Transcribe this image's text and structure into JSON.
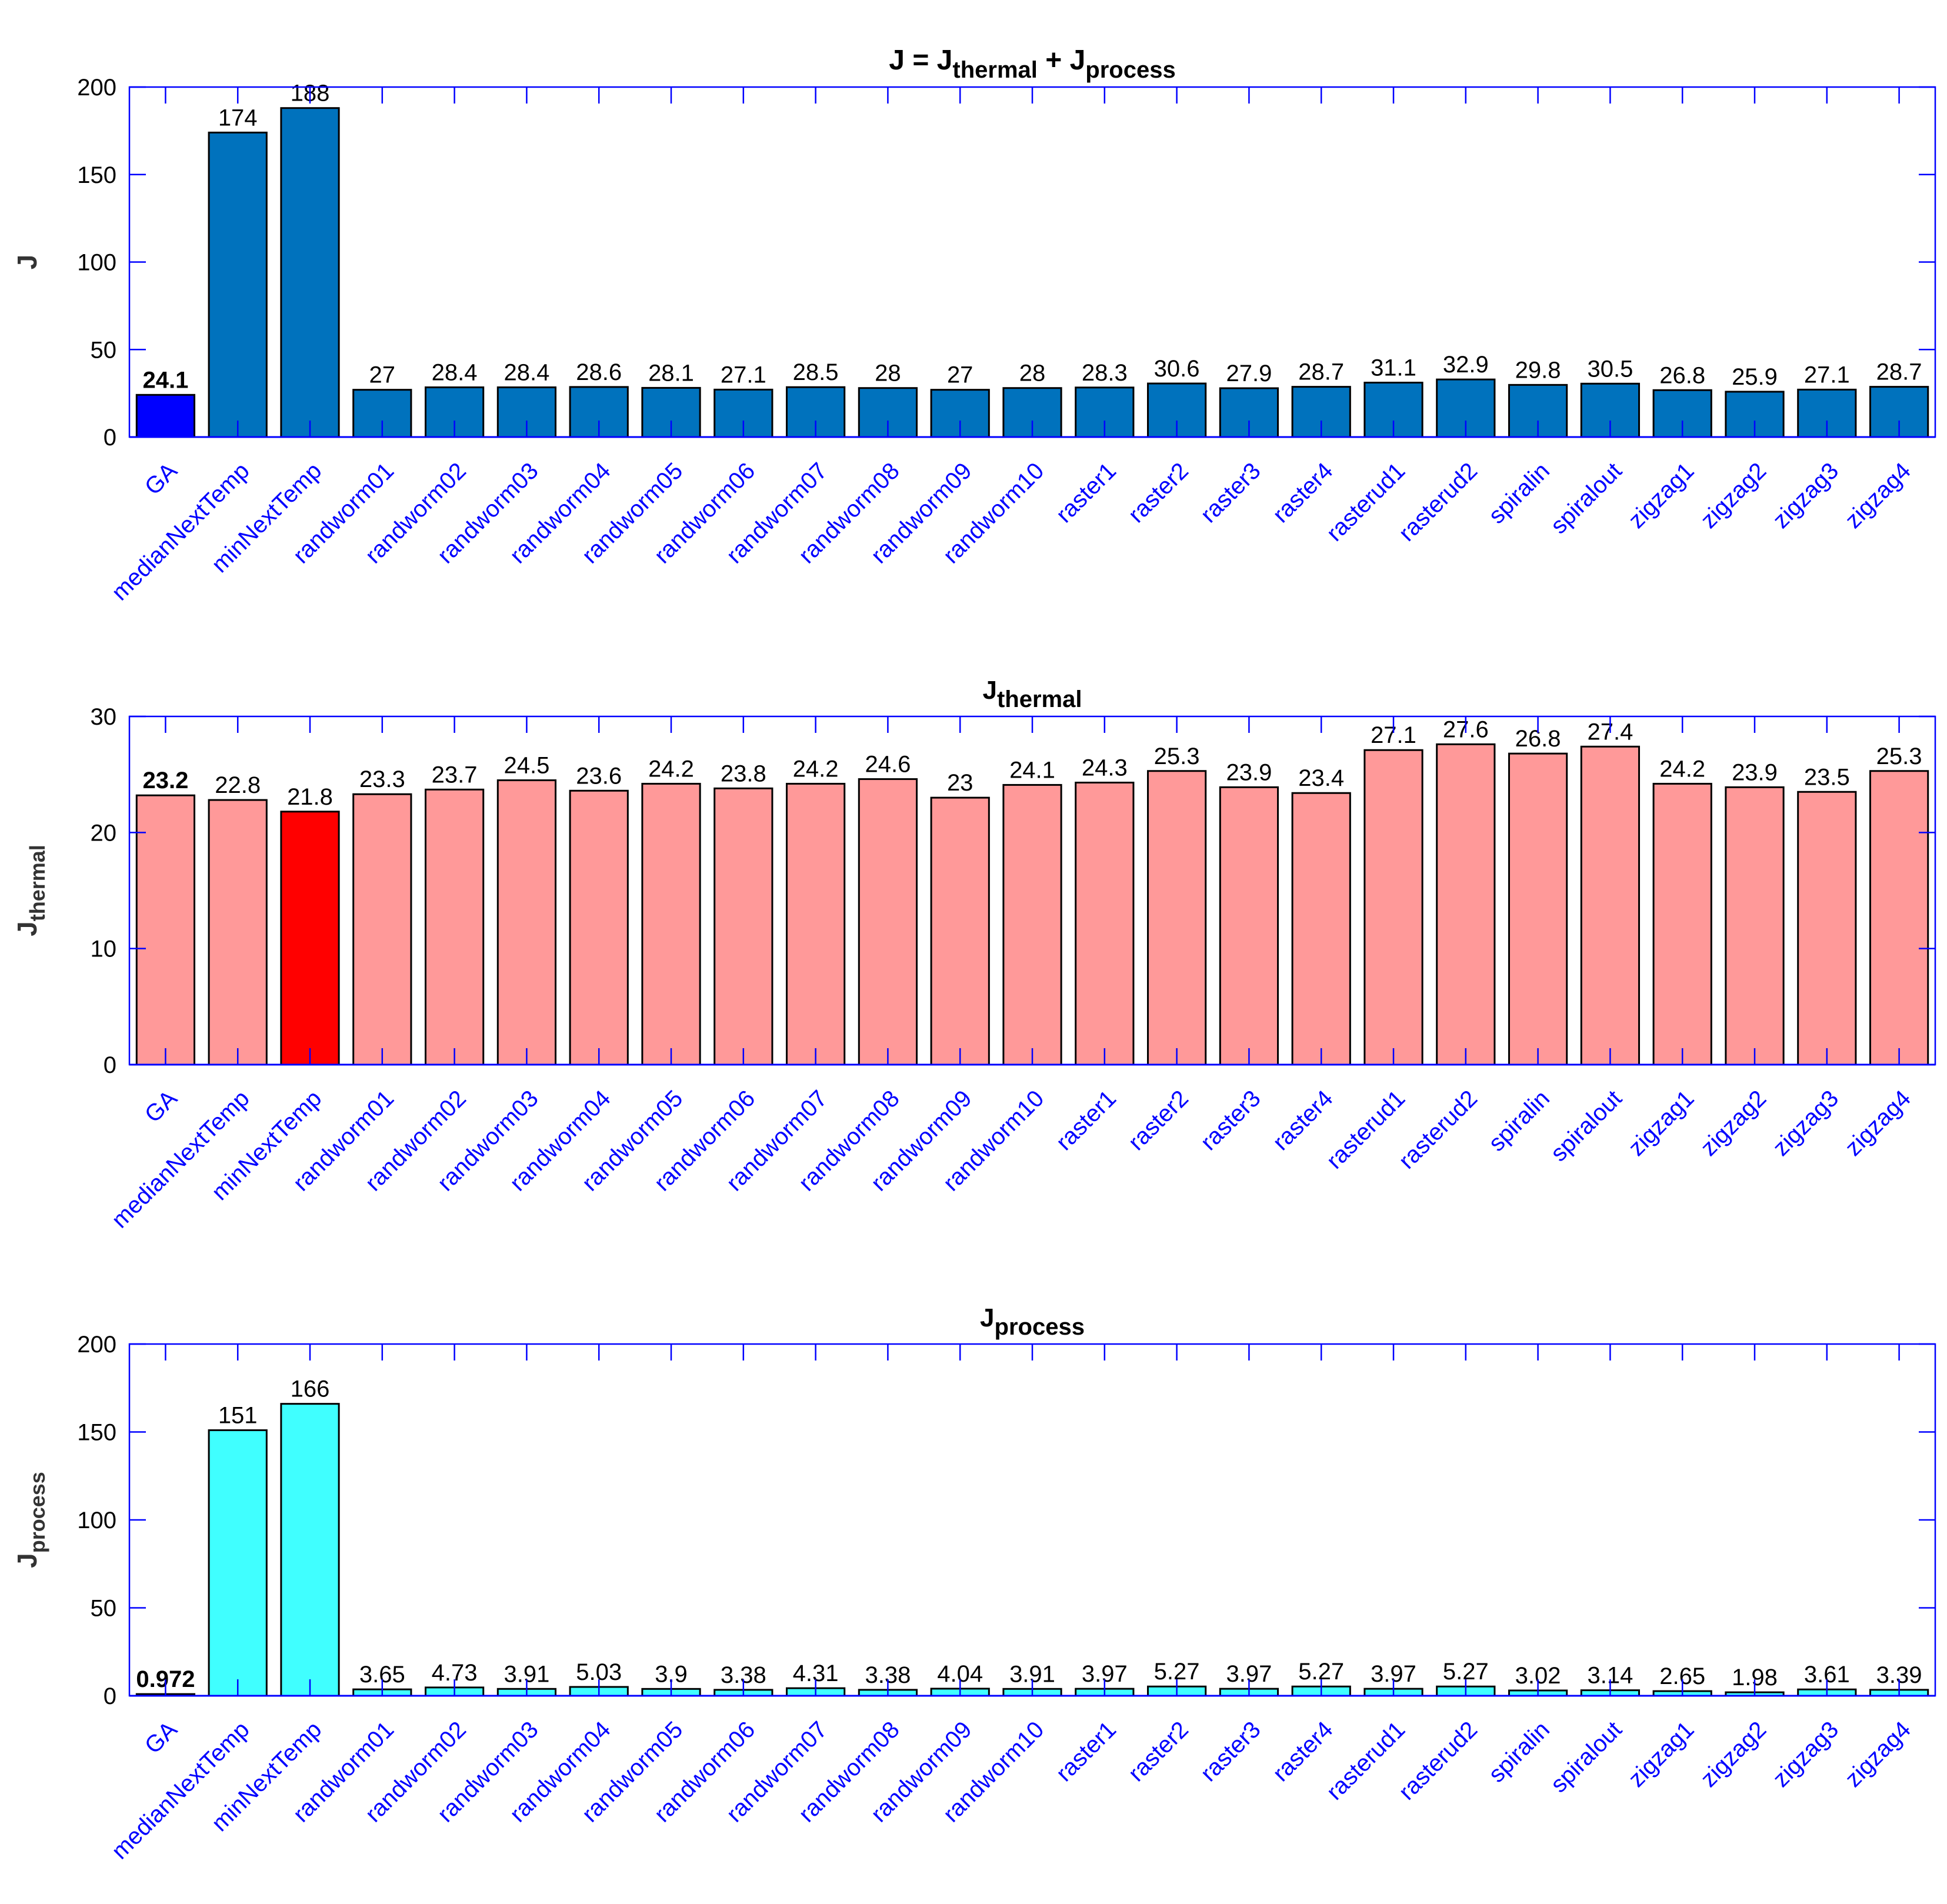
{
  "chart_data": [
    {
      "type": "bar",
      "title": "J = J",
      "title_sub1": "thermal",
      "title_mid": " + J",
      "title_sub2": "process",
      "ylabel": "J",
      "ylabel_sub": "",
      "ylim": [
        0,
        200
      ],
      "yticks": [
        "0",
        "50",
        "100",
        "150",
        "200"
      ],
      "categories": [
        "GA",
        "medianNextTemp",
        "minNextTemp",
        "randworm01",
        "randworm02",
        "randworm03",
        "randworm04",
        "randworm05",
        "randworm06",
        "randworm07",
        "randworm08",
        "randworm09",
        "randworm10",
        "raster1",
        "raster2",
        "raster3",
        "raster4",
        "rasterud1",
        "rasterud2",
        "spiralin",
        "spiralout",
        "zigzag1",
        "zigzag2",
        "zigzag3",
        "zigzag4"
      ],
      "values": [
        24.1,
        174,
        188,
        27,
        28.4,
        28.4,
        28.6,
        28.1,
        27.1,
        28.5,
        28,
        27,
        28,
        28.3,
        30.6,
        27.9,
        28.7,
        31.1,
        32.9,
        29.8,
        30.5,
        26.8,
        25.9,
        27.1,
        28.7
      ],
      "data_labels": [
        "24.1",
        "174",
        "188",
        "27",
        "28.4",
        "28.4",
        "28.6",
        "28.1",
        "27.1",
        "28.5",
        "28",
        "27",
        "28",
        "28.3",
        "30.6",
        "27.9",
        "28.7",
        "31.1",
        "32.9",
        "29.8",
        "30.5",
        "26.8",
        "25.9",
        "27.1",
        "28.7"
      ],
      "highlight_index": 0,
      "bar_color": "#0072BD",
      "highlight_color": "#0000FF",
      "grid": false
    },
    {
      "type": "bar",
      "title": "J",
      "title_sub1": "thermal",
      "title_mid": "",
      "title_sub2": "",
      "ylabel": "J",
      "ylabel_sub": "thermal",
      "ylim": [
        0,
        30
      ],
      "yticks": [
        "0",
        "10",
        "20",
        "30"
      ],
      "categories": [
        "GA",
        "medianNextTemp",
        "minNextTemp",
        "randworm01",
        "randworm02",
        "randworm03",
        "randworm04",
        "randworm05",
        "randworm06",
        "randworm07",
        "randworm08",
        "randworm09",
        "randworm10",
        "raster1",
        "raster2",
        "raster3",
        "raster4",
        "rasterud1",
        "rasterud2",
        "spiralin",
        "spiralout",
        "zigzag1",
        "zigzag2",
        "zigzag3",
        "zigzag4"
      ],
      "values": [
        23.2,
        22.8,
        21.8,
        23.3,
        23.7,
        24.5,
        23.6,
        24.2,
        23.8,
        24.2,
        24.6,
        23,
        24.1,
        24.3,
        25.3,
        23.9,
        23.4,
        27.1,
        27.6,
        26.8,
        27.4,
        24.2,
        23.9,
        23.5,
        25.3
      ],
      "data_labels": [
        "23.2",
        "22.8",
        "21.8",
        "23.3",
        "23.7",
        "24.5",
        "23.6",
        "24.2",
        "23.8",
        "24.2",
        "24.6",
        "23",
        "24.1",
        "24.3",
        "25.3",
        "23.9",
        "23.4",
        "27.1",
        "27.6",
        "26.8",
        "27.4",
        "24.2",
        "23.9",
        "23.5",
        "25.3"
      ],
      "bold_label_index": 0,
      "highlight_index": 2,
      "bar_color": "#FF9999",
      "highlight_color": "#FF0000",
      "grid": false
    },
    {
      "type": "bar",
      "title": "J",
      "title_sub1": "process",
      "title_mid": "",
      "title_sub2": "",
      "ylabel": "J",
      "ylabel_sub": "process",
      "ylim": [
        0,
        200
      ],
      "yticks": [
        "0",
        "50",
        "100",
        "150",
        "200"
      ],
      "categories": [
        "GA",
        "medianNextTemp",
        "minNextTemp",
        "randworm01",
        "randworm02",
        "randworm03",
        "randworm04",
        "randworm05",
        "randworm06",
        "randworm07",
        "randworm08",
        "randworm09",
        "randworm10",
        "raster1",
        "raster2",
        "raster3",
        "raster4",
        "rasterud1",
        "rasterud2",
        "spiralin",
        "spiralout",
        "zigzag1",
        "zigzag2",
        "zigzag3",
        "zigzag4"
      ],
      "values": [
        0.972,
        151,
        166,
        3.65,
        4.73,
        3.91,
        5.03,
        3.9,
        3.38,
        4.31,
        3.38,
        4.04,
        3.91,
        3.97,
        5.27,
        3.97,
        5.27,
        3.97,
        5.27,
        3.02,
        3.14,
        2.65,
        1.98,
        3.61,
        3.39
      ],
      "data_labels": [
        "0.972",
        "151",
        "166",
        "3.65",
        "4.73",
        "3.91",
        "5.03",
        "3.9",
        "3.38",
        "4.31",
        "3.38",
        "4.04",
        "3.91",
        "3.97",
        "5.27",
        "3.97",
        "5.27",
        "3.97",
        "5.27",
        "3.02",
        "3.14",
        "2.65",
        "1.98",
        "3.61",
        "3.39"
      ],
      "bold_label_index": 0,
      "highlight_index": -1,
      "bar_color": "#40FFFF",
      "highlight_color": "#40FFFF",
      "grid": false
    }
  ],
  "colors": {
    "axis": "#0000FF",
    "tick_label": "#0000FF",
    "text": "#000000",
    "bar_edge": "#000000"
  }
}
